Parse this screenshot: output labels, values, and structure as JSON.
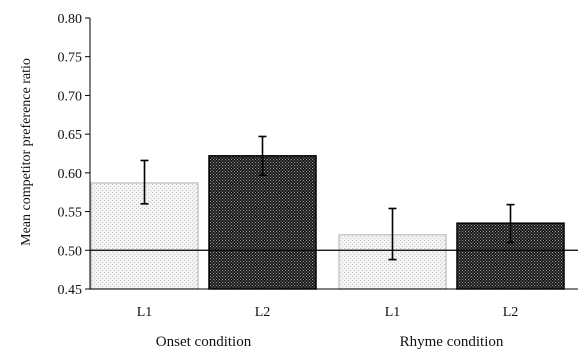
{
  "chart_data": {
    "type": "bar",
    "title": "",
    "xlabel": "",
    "ylabel": "Mean competitor preference ratio",
    "ylim": [
      0.45,
      0.8
    ],
    "yticks": [
      "0.45",
      "0.50",
      "0.55",
      "0.60",
      "0.65",
      "0.70",
      "0.75",
      "0.80"
    ],
    "reference_line": 0.5,
    "grid": false,
    "groups": [
      {
        "label": "Onset condition",
        "bars": [
          {
            "category": "L1",
            "value": 0.587,
            "error_low": 0.56,
            "error_high": 0.616,
            "pattern": "light-dotted"
          },
          {
            "category": "L2",
            "value": 0.622,
            "error_low": 0.597,
            "error_high": 0.647,
            "pattern": "dark-checker"
          }
        ]
      },
      {
        "label": "Rhyme condition",
        "bars": [
          {
            "category": "L1",
            "value": 0.52,
            "error_low": 0.488,
            "error_high": 0.554,
            "pattern": "light-dotted"
          },
          {
            "category": "L2",
            "value": 0.535,
            "error_low": 0.51,
            "error_high": 0.559,
            "pattern": "dark-checker"
          }
        ]
      }
    ],
    "colors": {
      "light_fill": "#e6e6e6",
      "light_border": "#bdbdbd",
      "dark_fill": "#3a3a3a",
      "dark_border": "#000000"
    }
  }
}
